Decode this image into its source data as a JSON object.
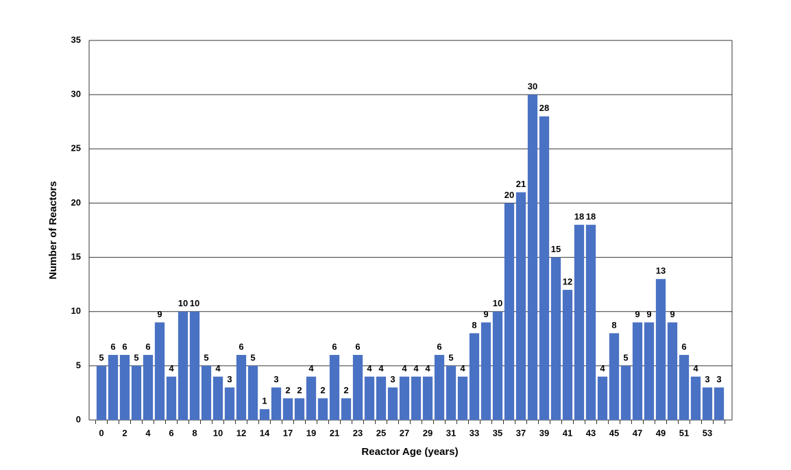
{
  "chart_data": {
    "type": "bar",
    "x_label": "Reactor Age (years)",
    "y_label": "Number of Reactors",
    "categories": [
      "0",
      null,
      "2",
      null,
      "4",
      null,
      "6",
      null,
      "8",
      null,
      "10",
      null,
      "12",
      null,
      "14",
      null,
      "17",
      null,
      "19",
      null,
      "21",
      null,
      "23",
      null,
      "25",
      null,
      "27",
      null,
      "29",
      null,
      "31",
      null,
      "33",
      null,
      "35",
      null,
      "37",
      null,
      "39",
      null,
      "41",
      null,
      "43",
      null,
      "45",
      null,
      "47",
      null,
      "49",
      null,
      "51",
      null,
      "53",
      null
    ],
    "values": [
      5,
      6,
      6,
      5,
      6,
      9,
      4,
      10,
      10,
      5,
      4,
      3,
      6,
      5,
      1,
      3,
      2,
      2,
      4,
      2,
      6,
      2,
      6,
      4,
      4,
      3,
      4,
      4,
      4,
      6,
      5,
      4,
      8,
      9,
      10,
      20,
      21,
      30,
      28,
      15,
      12,
      18,
      18,
      4,
      8,
      5,
      9,
      9,
      13,
      9,
      6,
      4,
      3,
      3
    ],
    "color": "#4a72c4",
    "ylim": [
      0,
      35
    ],
    "yticks": [
      0,
      5,
      10,
      15,
      20,
      25,
      30,
      35
    ],
    "grid": true
  }
}
